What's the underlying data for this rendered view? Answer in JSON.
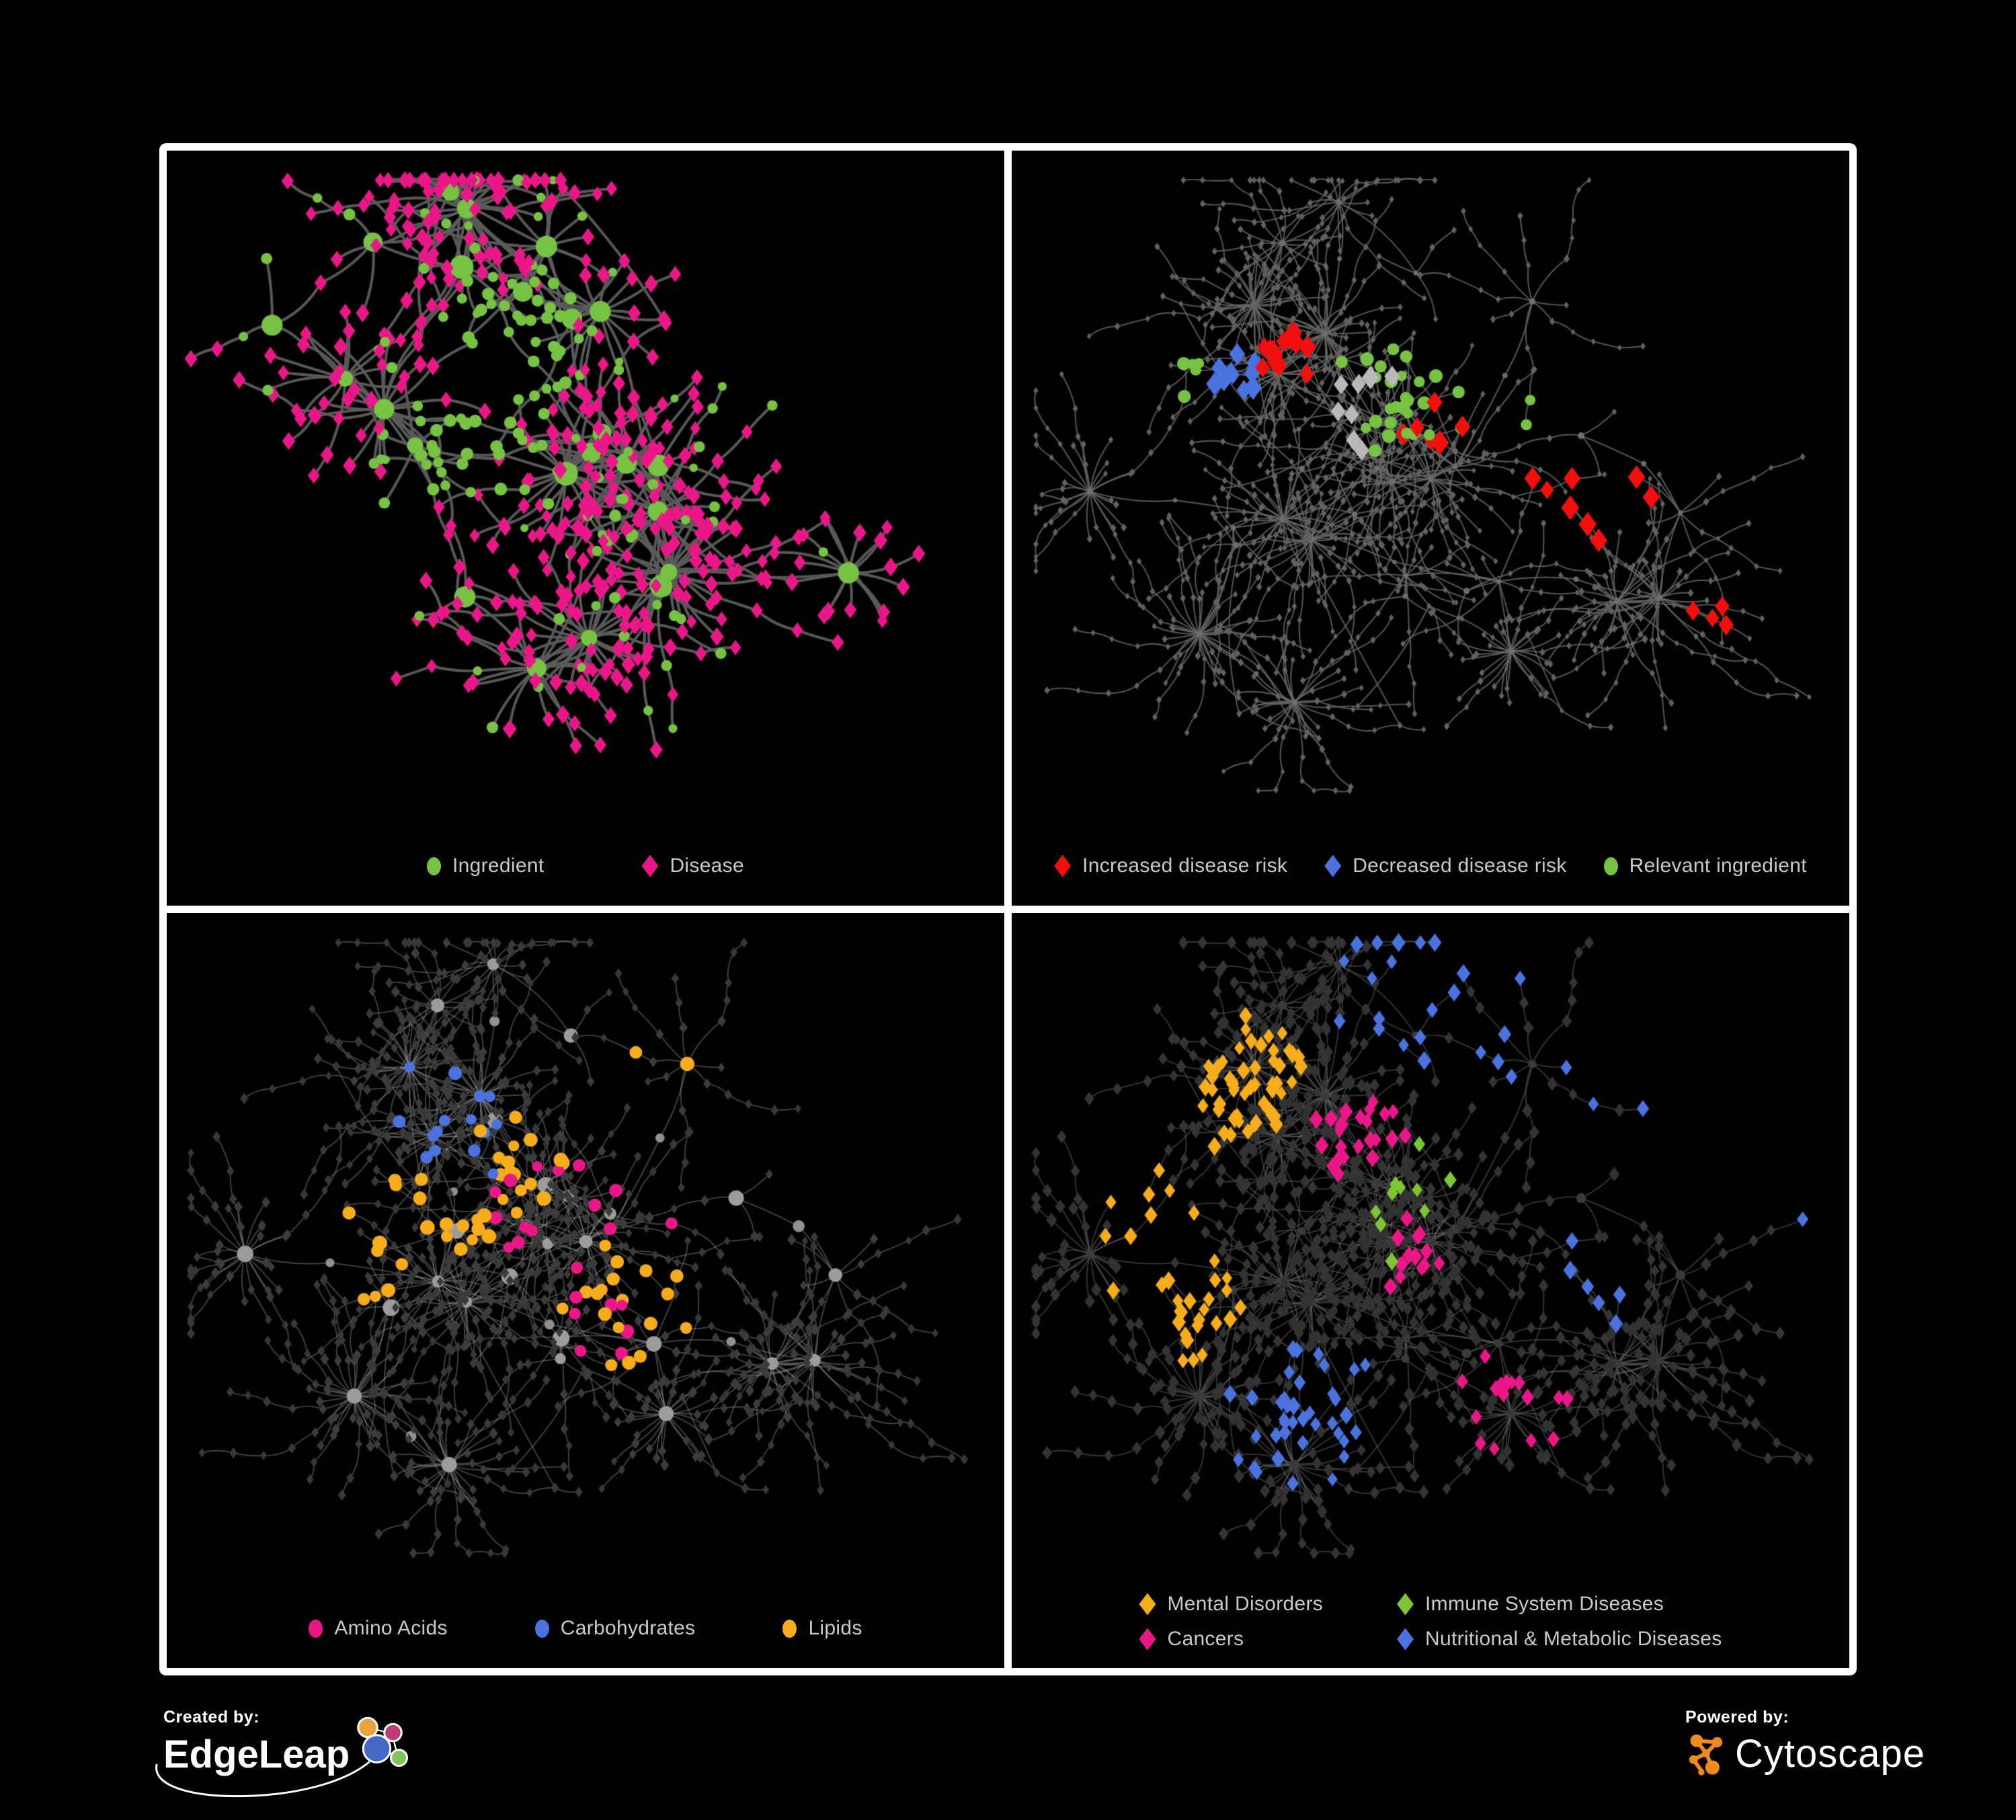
{
  "figure": {
    "background": "#000000",
    "frame_color": "#FFFFFF"
  },
  "panels": [
    {
      "id": "ingredient-disease",
      "legend": [
        {
          "shape": "circle",
          "color": "#77C143",
          "label": "Ingredient"
        },
        {
          "shape": "diamond",
          "color": "#EA1788",
          "label": "Disease"
        }
      ],
      "network": {
        "seed": 7,
        "style_seed": 71,
        "hubs": 24,
        "maxLeaves": 30,
        "leafDist": [
          45,
          120
        ],
        "chainProb": 0.32,
        "chainMax": 3,
        "twigDist": [
          34,
          72
        ],
        "crossFrac": 0.05,
        "crossMax": 300,
        "net_height": 950,
        "edge_color": "rgba(92,92,92,0.95)",
        "edge_width": 4.2,
        "base": {
          "hub": {
            "shape": "circle",
            "color": "#77C143",
            "size": [
              11,
              18
            ]
          },
          "mid": {
            "shape": "circle",
            "color": "#77C143",
            "size": [
              7,
              10
            ],
            "altProb": 0.5,
            "alt": {
              "shape": "diamond",
              "color": "#EA1788",
              "size": [
                8.5,
                10.5
              ]
            }
          },
          "leaf": {
            "shape": "diamond",
            "color": "#EA1788",
            "size": [
              8.5,
              11
            ],
            "altProb": 0.2,
            "alt": {
              "shape": "circle",
              "color": "#77C143",
              "size": [
                6.5,
                9
              ]
            }
          },
          "twig": {
            "shape": "diamond",
            "color": "#EA1788",
            "size": [
              8,
              10.5
            ],
            "altProb": 0.12,
            "alt": {
              "shape": "circle",
              "color": "#77C143",
              "size": [
                6,
                8.5
              ]
            }
          }
        },
        "highlights": [
          {
            "shape": "circle",
            "color": "#77C143",
            "size": 8.5,
            "count": 60,
            "spread": 0.4,
            "kinds": [
              "leaf",
              "twig"
            ],
            "centers": [
              [
                0.42,
                0.28,
                0.13
              ],
              [
                0.35,
                0.45,
                0.12
              ]
            ]
          }
        ]
      }
    },
    {
      "id": "disease-risk",
      "legend": [
        {
          "shape": "diamond",
          "color": "#F2100F",
          "label": "Increased disease risk"
        },
        {
          "shape": "diamond",
          "color": "#4A73E0",
          "label": "Decreased disease risk"
        },
        {
          "shape": "circle",
          "color": "#77C143",
          "label": "Relevant ingredient"
        }
      ],
      "network": {
        "seed": 21,
        "style_seed": 5,
        "hubs": 34,
        "maxLeaves": 34,
        "leafDist": [
          30,
          85
        ],
        "chainProb": 0.5,
        "chainMax": 4,
        "twigDist": [
          26,
          55
        ],
        "crossFrac": 0.05,
        "crossMax": 260,
        "net_height": 950,
        "edge_color": "rgba(104,104,104,0.8)",
        "edge_width": 2.1,
        "base": {
          "hub": {
            "shape": "circle",
            "color": "#6E6E6E",
            "size": [
              3.5,
              5
            ]
          },
          "mid": {
            "shape": "circle",
            "color": "#6A6A6A",
            "size": [
              3,
              4.2
            ]
          },
          "leaf": {
            "shape": "diamond",
            "color": "#616161",
            "size": [
              3.8,
              4.8
            ]
          },
          "twig": {
            "shape": "diamond",
            "color": "#616161",
            "size": [
              3.5,
              4.5
            ]
          }
        },
        "highlights": [
          {
            "shape": "circle",
            "color": "#77C143",
            "size": 9,
            "count": 34,
            "spread": 0.5,
            "kinds": [
              "hub",
              "mid",
              "twig"
            ],
            "centers": [
              [
                0.47,
                0.36,
                0.2
              ],
              [
                0.2,
                0.33,
                0.12
              ],
              [
                0.62,
                0.42,
                0.15
              ]
            ]
          },
          {
            "shape": "diamond",
            "color": "#F2100F",
            "size": 12.5,
            "count": 32,
            "spread": 0.5,
            "kinds": [
              "leaf",
              "twig",
              "mid"
            ],
            "centers": [
              [
                0.5,
                0.38,
                0.16
              ],
              [
                0.32,
                0.3,
                0.1
              ],
              [
                0.68,
                0.5,
                0.22
              ],
              [
                0.85,
                0.72,
                0.1
              ]
            ]
          },
          {
            "shape": "diamond",
            "color": "#4A73E0",
            "size": 12.5,
            "count": 10,
            "spread": 0.4,
            "kinds": [
              "leaf",
              "twig",
              "mid"
            ],
            "centers": [
              [
                0.26,
                0.34,
                0.09
              ],
              [
                0.9,
                0.17,
                0.05
              ]
            ]
          },
          {
            "shape": "diamond",
            "color": "#B9B9B9",
            "size": 12,
            "count": 9,
            "spread": 0.7,
            "kinds": [
              "leaf",
              "twig"
            ],
            "centers": [
              [
                0.42,
                0.38,
                0.28
              ]
            ]
          }
        ]
      }
    },
    {
      "id": "nutrient-classes",
      "legend": [
        {
          "shape": "circle",
          "color": "#EA1788",
          "label": "Amino Acids"
        },
        {
          "shape": "circle",
          "color": "#4A73E0",
          "label": "Carbohydrates"
        },
        {
          "shape": "circle",
          "color": "#F7AC1B",
          "label": "Lipids"
        }
      ],
      "network": {
        "seed": 21,
        "style_seed": 9,
        "hubs": 34,
        "maxLeaves": 34,
        "leafDist": [
          30,
          85
        ],
        "chainProb": 0.5,
        "chainMax": 4,
        "twigDist": [
          26,
          55
        ],
        "crossFrac": 0.05,
        "crossMax": 260,
        "net_height": 950,
        "edge_color": "rgba(150,150,150,0.45)",
        "edge_width": 1.8,
        "base": {
          "hub": {
            "shape": "circle",
            "color": "#9C9C9C",
            "size": [
              8,
              13
            ]
          },
          "mid": {
            "shape": "circle",
            "color": "#909090",
            "size": [
              6,
              9
            ]
          },
          "leaf": {
            "shape": "diamond",
            "color": "#3C3C3C",
            "size": [
              5.5,
              7
            ]
          },
          "twig": {
            "shape": "diamond",
            "color": "#383838",
            "size": [
              5,
              6.5
            ]
          }
        },
        "highlights": [
          {
            "shape": "circle",
            "color": "#F7AC1B",
            "size": 9.5,
            "count": 58,
            "spread": 0.5,
            "kinds": [
              "hub",
              "mid",
              "twig"
            ],
            "centers": [
              [
                0.6,
                0.22,
                0.13
              ],
              [
                0.42,
                0.38,
                0.2
              ],
              [
                0.55,
                0.6,
                0.25
              ],
              [
                0.3,
                0.5,
                0.3
              ]
            ]
          },
          {
            "shape": "circle",
            "color": "#4A73E0",
            "size": 9,
            "count": 15,
            "spread": 0.5,
            "kinds": [
              "hub",
              "mid",
              "twig"
            ],
            "centers": [
              [
                0.58,
                0.2,
                0.1
              ],
              [
                0.35,
                0.3,
                0.2
              ]
            ]
          },
          {
            "shape": "circle",
            "color": "#EA1788",
            "size": 9,
            "count": 22,
            "spread": 1.2,
            "kinds": [
              "hub",
              "mid",
              "twig"
            ],
            "centers": [
              [
                0.5,
                0.5,
                0.65
              ]
            ]
          }
        ]
      }
    },
    {
      "id": "disease-categories",
      "legend": [
        {
          "shape": "diamond",
          "color": "#F7AC1B",
          "label": "Mental Disorders"
        },
        {
          "shape": "diamond",
          "color": "#7CC633",
          "label": "Immune System Diseases"
        },
        {
          "shape": "diamond",
          "color": "#EA1788",
          "label": "Cancers"
        },
        {
          "shape": "diamond",
          "color": "#4A73E0",
          "label": "Nutritional & Metabolic Diseases"
        }
      ],
      "network": {
        "seed": 21,
        "style_seed": 13,
        "hubs": 34,
        "maxLeaves": 34,
        "leafDist": [
          30,
          85
        ],
        "chainProb": 0.5,
        "chainMax": 4,
        "twigDist": [
          26,
          55
        ],
        "crossFrac": 0.05,
        "crossMax": 260,
        "net_height": 950,
        "edge_color": "rgba(110,110,110,0.5)",
        "edge_width": 1.8,
        "base": {
          "hub": {
            "shape": "circle",
            "color": "#3A3A3A",
            "size": [
              6,
              8
            ]
          },
          "mid": {
            "shape": "diamond",
            "color": "#353535",
            "size": [
              6.5,
              8
            ]
          },
          "leaf": {
            "shape": "diamond",
            "color": "#323232",
            "size": [
              7,
              8.5
            ]
          },
          "twig": {
            "shape": "diamond",
            "color": "#343434",
            "size": [
              6.5,
              8
            ]
          }
        },
        "highlights": [
          {
            "shape": "diamond",
            "color": "#F7AC1B",
            "size": 9.5,
            "count": 88,
            "spread": 0.35,
            "kinds": [
              "leaf",
              "twig",
              "mid"
            ],
            "centers": [
              [
                0.16,
                0.45,
                0.15
              ],
              [
                0.27,
                0.25,
                0.22
              ],
              [
                0.2,
                0.6,
                0.2
              ]
            ]
          },
          {
            "shape": "diamond",
            "color": "#EA1788",
            "size": 9.5,
            "count": 55,
            "spread": 0.5,
            "kinds": [
              "leaf",
              "twig",
              "mid"
            ],
            "centers": [
              [
                0.48,
                0.52,
                0.13
              ],
              [
                0.42,
                0.32,
                0.18
              ],
              [
                0.88,
                0.28,
                0.08
              ],
              [
                0.6,
                0.75,
                0.2
              ]
            ]
          },
          {
            "shape": "diamond",
            "color": "#4A73E0",
            "size": 9.5,
            "count": 70,
            "spread": 0.5,
            "kinds": [
              "leaf",
              "twig",
              "mid"
            ],
            "centers": [
              [
                0.7,
                0.55,
                0.12
              ],
              [
                0.76,
                0.26,
                0.18
              ],
              [
                0.35,
                0.78,
                0.2
              ],
              [
                0.55,
                0.06,
                0.35
              ],
              [
                0.9,
                0.45,
                0.2
              ]
            ]
          },
          {
            "shape": "diamond",
            "color": "#7CC633",
            "size": 9.5,
            "count": 10,
            "spread": 1.5,
            "kinds": [
              "leaf",
              "twig",
              "mid"
            ],
            "centers": [
              [
                0.5,
                0.45,
                0.7
              ]
            ]
          }
        ]
      }
    }
  ],
  "footer": {
    "created_by": {
      "label": "Created by:",
      "brand": "EdgeLeap"
    },
    "powered_by": {
      "label": "Powered by:",
      "brand": "Cytoscape"
    }
  }
}
